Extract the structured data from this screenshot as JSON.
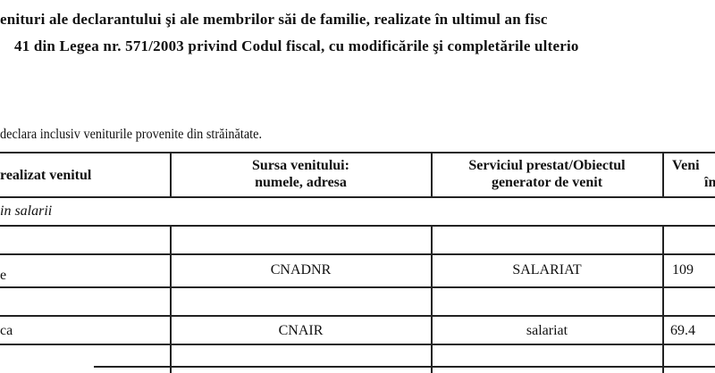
{
  "heading": {
    "line1": "enituri ale declarantului şi ale membrilor săi de familie, realizate în ultimul an fisc",
    "line2": "41 din Legea nr. 571/2003 privind Codul fiscal, cu modificările şi completările ulterio"
  },
  "note": "declara inclusiv veniturile provenite din străinătate.",
  "table": {
    "headers": {
      "col1": "realizat venitul",
      "col2_line1": "Sursa venitului:",
      "col2_line2": "numele, adresa",
      "col3_line1": "Serviciul prestat/Obiectul",
      "col3_line2": "generator de venit",
      "col4_line1": "Veni",
      "col4_line2": "în"
    },
    "section": "in salarii",
    "rows": [
      {
        "col1": "",
        "col2": "",
        "col3": "",
        "col4": ""
      },
      {
        "col1": "",
        "col2": "CNADNR",
        "col3": "SALARIAT",
        "col4": "109"
      },
      {
        "col1": "e",
        "col2": "",
        "col3": "",
        "col4": ""
      },
      {
        "col1": "ca",
        "col2": "CNAIR",
        "col3": "salariat",
        "col4": "69.4"
      },
      {
        "col1": "",
        "col2": "",
        "col3": "",
        "col4": ""
      }
    ]
  }
}
